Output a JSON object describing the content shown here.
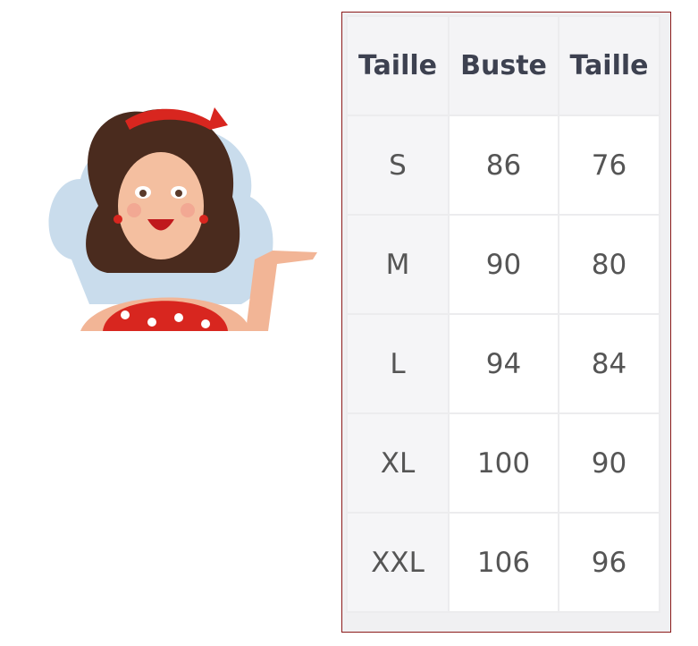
{
  "table": {
    "headers": [
      "Taille",
      "Buste",
      "Taille"
    ],
    "rows": [
      [
        "S",
        "86",
        "76"
      ],
      [
        "M",
        "90",
        "80"
      ],
      [
        "L",
        "94",
        "84"
      ],
      [
        "XL",
        "100",
        "90"
      ],
      [
        "XXL",
        "106",
        "96"
      ]
    ]
  },
  "colors": {
    "frame_border": "#8b1a1a",
    "header_text": "#3d4150",
    "cell_text": "#555555",
    "dress": "#d8261f",
    "hair": "#4a2b1e"
  },
  "illustration": {
    "icon": "pinup-woman-illustration"
  }
}
